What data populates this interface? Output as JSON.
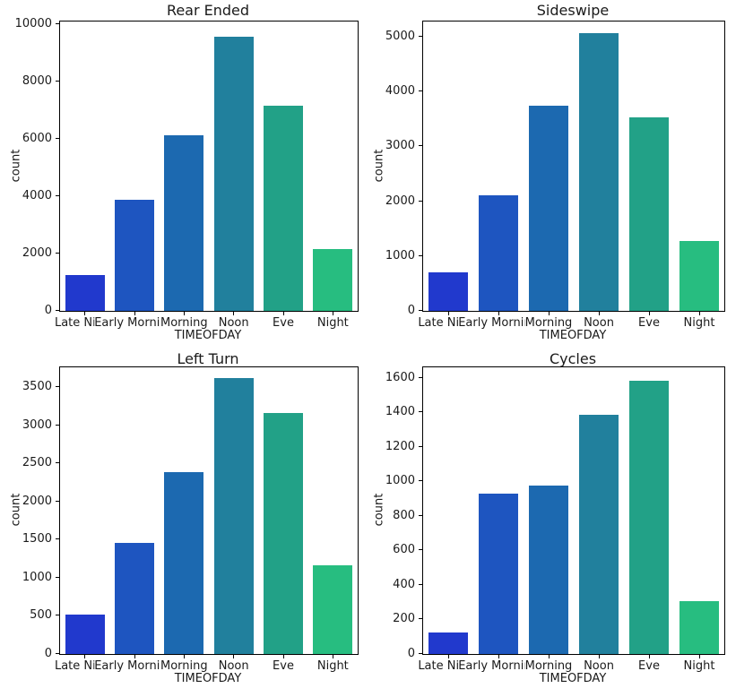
{
  "figure": {
    "background": "#ffffff",
    "palette": [
      "#2139cd",
      "#1e55c0",
      "#1c69b0",
      "#21809d",
      "#22a187",
      "#27bd80"
    ],
    "text_color": "#1a1a1a",
    "spine_color": "#000000"
  },
  "chart_data": [
    {
      "type": "bar",
      "title": "Rear Ended",
      "xlabel": "TIMEOFDAY",
      "ylabel": "count",
      "categories": [
        "Late Night",
        "Early Morning",
        "Morning",
        "Noon",
        "Eve",
        "Night"
      ],
      "values": [
        1250,
        3880,
        6130,
        9550,
        7150,
        2150
      ],
      "yticks": [
        0,
        2000,
        4000,
        6000,
        8000,
        10000
      ],
      "ylim": [
        0,
        10080
      ],
      "grid": "off",
      "legend": "none"
    },
    {
      "type": "bar",
      "title": "Sideswipe",
      "xlabel": "TIMEOFDAY",
      "ylabel": "count",
      "categories": [
        "Late Night",
        "Early Morning",
        "Morning",
        "Noon",
        "Eve",
        "Night"
      ],
      "values": [
        710,
        2110,
        3750,
        5070,
        3530,
        1280
      ],
      "yticks": [
        0,
        1000,
        2000,
        3000,
        4000,
        5000
      ],
      "ylim": [
        0,
        5280
      ],
      "grid": "off",
      "legend": "none"
    },
    {
      "type": "bar",
      "title": "Left Turn",
      "xlabel": "TIMEOFDAY",
      "ylabel": "count",
      "categories": [
        "Late Night",
        "Early Morning",
        "Morning",
        "Noon",
        "Eve",
        "Night"
      ],
      "values": [
        515,
        1455,
        2390,
        3615,
        3160,
        1165
      ],
      "yticks": [
        0,
        500,
        1000,
        1500,
        2000,
        2500,
        3000,
        3500
      ],
      "ylim": [
        0,
        3760
      ],
      "grid": "off",
      "legend": "none"
    },
    {
      "type": "bar",
      "title": "Cycles",
      "xlabel": "TIMEOFDAY",
      "ylabel": "count",
      "categories": [
        "Late Night",
        "Early Morning",
        "Morning",
        "Noon",
        "Eve",
        "Night"
      ],
      "values": [
        125,
        930,
        975,
        1385,
        1580,
        305
      ],
      "yticks": [
        0,
        200,
        400,
        600,
        800,
        1000,
        1200,
        1400,
        1600
      ],
      "ylim": [
        0,
        1660
      ],
      "grid": "off",
      "legend": "none"
    }
  ]
}
